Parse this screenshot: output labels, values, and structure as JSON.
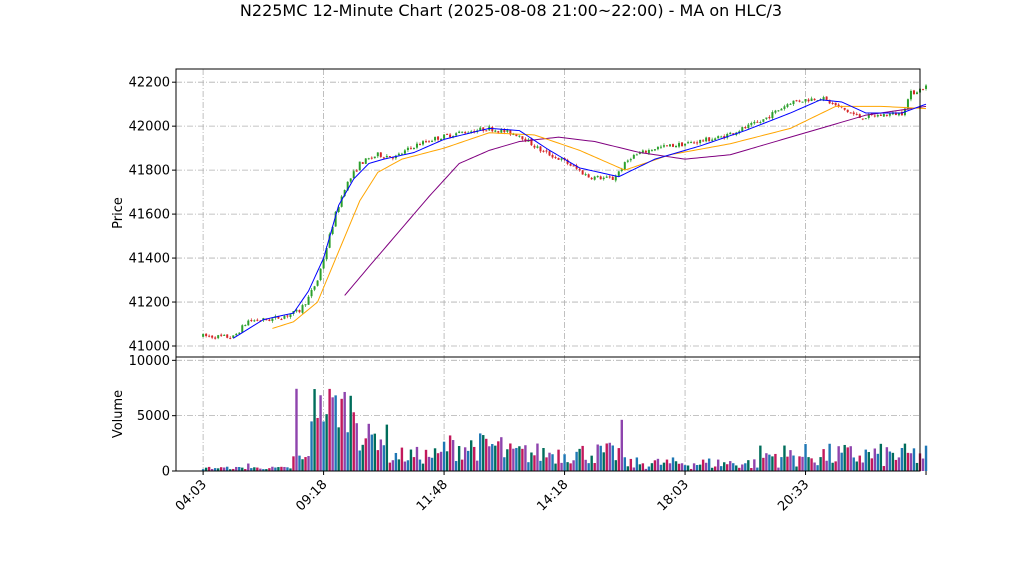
{
  "title": "N225MC 12-Minute Chart (2025-08-08 21:00~22:00) - MA on HLC/3",
  "chart_data": {
    "type": "candlestick",
    "price_panel": {
      "ylabel": "Price",
      "ylim": [
        40950,
        42260
      ],
      "yticks": [
        41000,
        41200,
        41400,
        41600,
        41800,
        42000,
        42200
      ],
      "grid": true
    },
    "volume_panel": {
      "ylabel": "Volume",
      "ylim": [
        0,
        10300
      ],
      "yticks": [
        0,
        5000,
        10000
      ],
      "grid": true
    },
    "x_range": [
      -9,
      238
    ],
    "xticks": [
      {
        "i": 0,
        "label": "04:03"
      },
      {
        "i": 40,
        "label": "09:18"
      },
      {
        "i": 80,
        "label": "11:48"
      },
      {
        "i": 120,
        "label": "14:18"
      },
      {
        "i": 160,
        "label": "18:03"
      },
      {
        "i": 200,
        "label": "20:33"
      },
      {
        "i": 240,
        "label": ""
      }
    ],
    "colors": {
      "up": "#2ca02c",
      "down": "#d62728",
      "vol_colors": [
        "#1f77b4",
        "#006d5b",
        "#c2185b",
        "#8e44ad"
      ],
      "ma_short": "#0000ff",
      "ma_mid": "#ffa500",
      "ma_long": "#800080"
    },
    "price_anchors": [
      [
        0,
        41045
      ],
      [
        10,
        41040
      ],
      [
        15,
        41115
      ],
      [
        22,
        41120
      ],
      [
        28,
        41140
      ],
      [
        32,
        41160
      ],
      [
        35,
        41220
      ],
      [
        38,
        41300
      ],
      [
        41,
        41450
      ],
      [
        44,
        41600
      ],
      [
        47,
        41720
      ],
      [
        52,
        41830
      ],
      [
        58,
        41870
      ],
      [
        64,
        41860
      ],
      [
        70,
        41910
      ],
      [
        76,
        41940
      ],
      [
        85,
        41970
      ],
      [
        95,
        41990
      ],
      [
        105,
        41960
      ],
      [
        112,
        41890
      ],
      [
        120,
        41840
      ],
      [
        128,
        41770
      ],
      [
        136,
        41760
      ],
      [
        142,
        41860
      ],
      [
        150,
        41900
      ],
      [
        160,
        41920
      ],
      [
        172,
        41950
      ],
      [
        185,
        42020
      ],
      [
        195,
        42110
      ],
      [
        205,
        42130
      ],
      [
        212,
        42080
      ],
      [
        218,
        42040
      ],
      [
        225,
        42050
      ],
      [
        232,
        42060
      ],
      [
        235,
        42150
      ],
      [
        240,
        42180
      ]
    ],
    "ma_short_anchors": [
      [
        10,
        41035
      ],
      [
        20,
        41120
      ],
      [
        30,
        41150
      ],
      [
        35,
        41250
      ],
      [
        40,
        41400
      ],
      [
        45,
        41640
      ],
      [
        50,
        41760
      ],
      [
        55,
        41830
      ],
      [
        60,
        41850
      ],
      [
        70,
        41880
      ],
      [
        80,
        41940
      ],
      [
        95,
        41990
      ],
      [
        105,
        41980
      ],
      [
        115,
        41890
      ],
      [
        125,
        41810
      ],
      [
        138,
        41770
      ],
      [
        150,
        41850
      ],
      [
        165,
        41910
      ],
      [
        180,
        41980
      ],
      [
        195,
        42060
      ],
      [
        205,
        42120
      ],
      [
        212,
        42110
      ],
      [
        220,
        42060
      ],
      [
        232,
        42060
      ],
      [
        240,
        42100
      ]
    ],
    "ma_mid_anchors": [
      [
        23,
        41080
      ],
      [
        30,
        41110
      ],
      [
        38,
        41200
      ],
      [
        45,
        41430
      ],
      [
        52,
        41660
      ],
      [
        58,
        41790
      ],
      [
        66,
        41850
      ],
      [
        80,
        41900
      ],
      [
        95,
        41970
      ],
      [
        110,
        41960
      ],
      [
        125,
        41890
      ],
      [
        140,
        41800
      ],
      [
        155,
        41870
      ],
      [
        175,
        41920
      ],
      [
        195,
        41990
      ],
      [
        210,
        42090
      ],
      [
        225,
        42090
      ],
      [
        240,
        42080
      ]
    ],
    "ma_long_anchors": [
      [
        47,
        41230
      ],
      [
        55,
        41360
      ],
      [
        65,
        41520
      ],
      [
        75,
        41680
      ],
      [
        85,
        41830
      ],
      [
        95,
        41890
      ],
      [
        105,
        41930
      ],
      [
        118,
        41950
      ],
      [
        130,
        41930
      ],
      [
        145,
        41880
      ],
      [
        160,
        41850
      ],
      [
        175,
        41870
      ],
      [
        190,
        41930
      ],
      [
        205,
        41990
      ],
      [
        220,
        42050
      ],
      [
        240,
        42090
      ]
    ]
  }
}
